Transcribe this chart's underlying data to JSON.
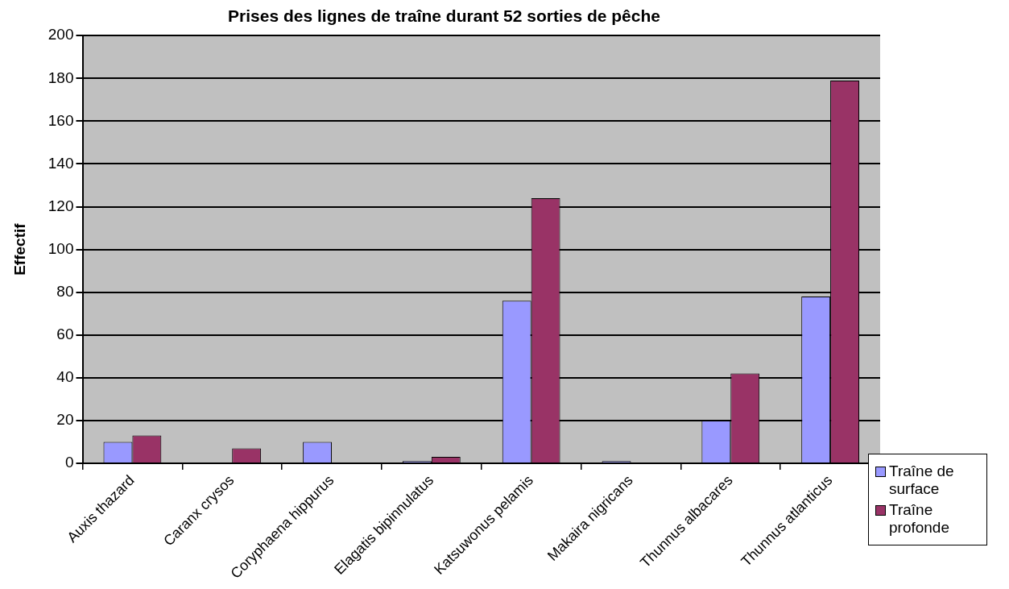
{
  "chart_data": {
    "type": "bar",
    "title": "Prises des lignes de traîne durant 52 sorties de pêche",
    "ylabel": "Effectif",
    "categories": [
      "Auxis thazard",
      "Caranx crysos",
      "Coryphaena hippurus",
      "Elagatis bipinnulatus",
      "Katsuwonus pelamis",
      "Makaira nigricans",
      "Thunnus albacares",
      "Thunnus atlanticus"
    ],
    "series": [
      {
        "name": "Traîne de surface",
        "color": "#9999ff",
        "values": [
          10,
          0,
          10,
          1,
          76,
          1,
          20,
          78
        ]
      },
      {
        "name": "Traîne profonde",
        "color": "#993366",
        "values": [
          13,
          7,
          0,
          3,
          124,
          0,
          42,
          179
        ]
      }
    ],
    "ylim": [
      0,
      200
    ],
    "yticks": [
      0,
      20,
      40,
      60,
      80,
      100,
      120,
      140,
      160,
      180,
      200
    ],
    "grid": "y",
    "legend": "bottom right"
  }
}
